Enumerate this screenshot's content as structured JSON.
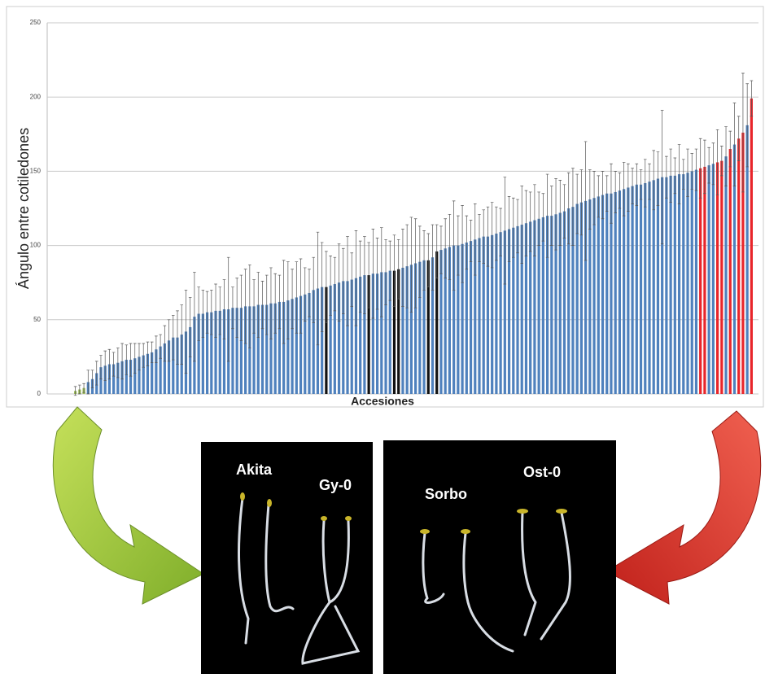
{
  "chart_data": {
    "type": "bar",
    "ylabel": "Ángulo entre cotiledones",
    "xlabel": "Accesiones",
    "ylim": [
      0,
      250
    ],
    "yticks": [
      0,
      50,
      100,
      150,
      200,
      250
    ],
    "grid": true,
    "values": [
      2,
      3,
      4,
      8,
      10,
      14,
      18,
      19,
      20,
      20,
      21,
      22,
      23,
      23,
      24,
      25,
      26,
      27,
      28,
      30,
      32,
      34,
      36,
      38,
      38,
      40,
      42,
      45,
      52,
      54,
      54,
      55,
      55,
      56,
      56,
      57,
      57,
      58,
      58,
      58,
      59,
      59,
      59,
      60,
      60,
      60,
      61,
      61,
      62,
      62,
      63,
      64,
      65,
      66,
      67,
      68,
      70,
      71,
      72,
      72,
      73,
      74,
      75,
      76,
      76,
      77,
      78,
      79,
      80,
      80,
      81,
      81,
      82,
      82,
      83,
      83,
      84,
      85,
      86,
      87,
      88,
      89,
      90,
      90,
      92,
      96,
      97,
      98,
      99,
      100,
      100,
      101,
      102,
      103,
      104,
      105,
      106,
      106,
      107,
      108,
      109,
      110,
      111,
      112,
      113,
      114,
      115,
      116,
      117,
      118,
      119,
      120,
      120,
      121,
      122,
      123,
      125,
      126,
      128,
      129,
      130,
      131,
      132,
      133,
      134,
      135,
      135,
      136,
      137,
      138,
      139,
      140,
      141,
      141,
      142,
      143,
      144,
      145,
      146,
      146,
      147,
      147,
      148,
      148,
      149,
      150,
      151,
      152,
      153,
      154,
      155,
      156,
      157,
      160,
      165,
      168,
      172,
      176,
      181,
      199
    ],
    "errors": [
      3,
      3,
      3,
      8,
      6,
      8,
      8,
      10,
      10,
      8,
      10,
      12,
      10,
      11,
      10,
      9,
      8,
      8,
      7,
      9,
      8,
      12,
      14,
      15,
      18,
      20,
      28,
      20,
      30,
      18,
      16,
      14,
      15,
      18,
      16,
      20,
      35,
      14,
      20,
      22,
      25,
      28,
      18,
      22,
      16,
      20,
      24,
      20,
      18,
      28,
      26,
      20,
      24,
      25,
      18,
      16,
      22,
      38,
      30,
      24,
      20,
      18,
      26,
      22,
      30,
      18,
      32,
      24,
      26,
      22,
      30,
      24,
      30,
      22,
      20,
      24,
      20,
      26,
      28,
      32,
      30,
      24,
      20,
      18,
      22,
      18,
      16,
      20,
      22,
      30,
      20,
      26,
      18,
      14,
      24,
      16,
      18,
      20,
      22,
      18,
      16,
      36,
      22,
      20,
      18,
      26,
      22,
      20,
      24,
      18,
      16,
      28,
      20,
      24,
      22,
      18,
      24,
      26,
      20,
      22,
      40,
      20,
      18,
      14,
      16,
      12,
      20,
      14,
      12,
      18,
      16,
      12,
      14,
      10,
      16,
      12,
      20,
      18,
      45,
      14,
      18,
      12,
      20,
      10,
      16,
      12,
      14,
      20,
      18,
      12,
      14,
      22,
      10,
      20,
      12,
      28,
      15,
      40,
      28,
      12
    ],
    "colors": [
      "#9bbb59",
      "#9bbb59",
      "#9bbb59",
      "#4f81bd",
      "#4f81bd",
      "#4f81bd",
      "#4f81bd",
      "#4f81bd",
      "#4f81bd",
      "#4f81bd",
      "#4f81bd",
      "#4f81bd",
      "#4f81bd",
      "#4f81bd",
      "#4f81bd",
      "#4f81bd",
      "#4f81bd",
      "#4f81bd",
      "#4f81bd",
      "#4f81bd",
      "#4f81bd",
      "#4f81bd",
      "#4f81bd",
      "#4f81bd",
      "#4f81bd",
      "#4f81bd",
      "#4f81bd",
      "#4f81bd",
      "#4f81bd",
      "#4f81bd",
      "#4f81bd",
      "#4f81bd",
      "#4f81bd",
      "#4f81bd",
      "#4f81bd",
      "#4f81bd",
      "#4f81bd",
      "#4f81bd",
      "#4f81bd",
      "#4f81bd",
      "#4f81bd",
      "#4f81bd",
      "#4f81bd",
      "#4f81bd",
      "#4f81bd",
      "#4f81bd",
      "#4f81bd",
      "#4f81bd",
      "#4f81bd",
      "#4f81bd",
      "#4f81bd",
      "#4f81bd",
      "#4f81bd",
      "#4f81bd",
      "#4f81bd",
      "#4f81bd",
      "#4f81bd",
      "#4f81bd",
      "#4f81bd",
      "#111111",
      "#4f81bd",
      "#4f81bd",
      "#4f81bd",
      "#4f81bd",
      "#4f81bd",
      "#4f81bd",
      "#4f81bd",
      "#4f81bd",
      "#4f81bd",
      "#111111",
      "#4f81bd",
      "#4f81bd",
      "#4f81bd",
      "#4f81bd",
      "#4f81bd",
      "#111111",
      "#111111",
      "#4f81bd",
      "#4f81bd",
      "#4f81bd",
      "#4f81bd",
      "#4f81bd",
      "#4f81bd",
      "#111111",
      "#4f81bd",
      "#111111",
      "#4f81bd",
      "#4f81bd",
      "#4f81bd",
      "#4f81bd",
      "#4f81bd",
      "#4f81bd",
      "#4f81bd",
      "#4f81bd",
      "#4f81bd",
      "#4f81bd",
      "#4f81bd",
      "#4f81bd",
      "#4f81bd",
      "#4f81bd",
      "#4f81bd",
      "#4f81bd",
      "#4f81bd",
      "#4f81bd",
      "#4f81bd",
      "#4f81bd",
      "#4f81bd",
      "#4f81bd",
      "#4f81bd",
      "#4f81bd",
      "#4f81bd",
      "#4f81bd",
      "#4f81bd",
      "#4f81bd",
      "#4f81bd",
      "#4f81bd",
      "#4f81bd",
      "#4f81bd",
      "#4f81bd",
      "#4f81bd",
      "#4f81bd",
      "#4f81bd",
      "#4f81bd",
      "#4f81bd",
      "#4f81bd",
      "#4f81bd",
      "#4f81bd",
      "#4f81bd",
      "#4f81bd",
      "#4f81bd",
      "#4f81bd",
      "#4f81bd",
      "#4f81bd",
      "#4f81bd",
      "#4f81bd",
      "#4f81bd",
      "#4f81bd",
      "#4f81bd",
      "#4f81bd",
      "#4f81bd",
      "#4f81bd",
      "#4f81bd",
      "#4f81bd",
      "#4f81bd",
      "#4f81bd",
      "#4f81bd",
      "#4f81bd",
      "#e8262b",
      "#e8262b",
      "#4f81bd",
      "#4f81bd",
      "#e8262b",
      "#e8262b",
      "#4f81bd",
      "#e8262b",
      "#4f81bd",
      "#e8262b",
      "#e8262b",
      "#4f81bd",
      "#e8262b"
    ]
  },
  "photos": {
    "left": [
      "Akita",
      "Gy-0"
    ],
    "right": [
      "Sorbo",
      "Ost-0"
    ]
  }
}
